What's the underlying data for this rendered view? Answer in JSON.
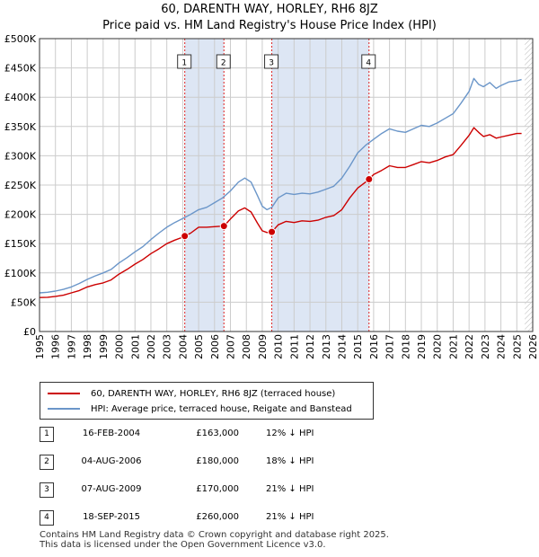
{
  "chart_data": {
    "type": "line",
    "title": "60, DARENTH WAY, HORLEY, RH6 8JZ",
    "subtitle": "Price paid vs. HM Land Registry's House Price Index (HPI)",
    "xlim": [
      1995,
      2026
    ],
    "ylim": [
      0,
      500000
    ],
    "x_ticks": [
      1995,
      1996,
      1997,
      1998,
      1999,
      2000,
      2001,
      2002,
      2003,
      2004,
      2005,
      2006,
      2007,
      2008,
      2009,
      2010,
      2011,
      2012,
      2013,
      2014,
      2015,
      2016,
      2017,
      2018,
      2019,
      2020,
      2021,
      2022,
      2023,
      2024,
      2025,
      2026
    ],
    "y_ticks": [
      {
        "value": 0,
        "label": "£0"
      },
      {
        "value": 50000,
        "label": "£50K"
      },
      {
        "value": 100000,
        "label": "£100K"
      },
      {
        "value": 150000,
        "label": "£150K"
      },
      {
        "value": 200000,
        "label": "£200K"
      },
      {
        "value": 250000,
        "label": "£250K"
      },
      {
        "value": 300000,
        "label": "£300K"
      },
      {
        "value": 350000,
        "label": "£350K"
      },
      {
        "value": 400000,
        "label": "£400K"
      },
      {
        "value": 450000,
        "label": "£450K"
      },
      {
        "value": 500000,
        "label": "£500K"
      }
    ],
    "series": [
      {
        "name": "60, DARENTH WAY, HORLEY, RH6 8JZ (terraced house)",
        "color": "#cc0000",
        "x": [
          1995.0,
          1995.5,
          1996.0,
          1996.5,
          1997.0,
          1997.5,
          1998.0,
          1998.5,
          1999.0,
          1999.5,
          2000.0,
          2000.5,
          2001.0,
          2001.5,
          2002.0,
          2002.5,
          2003.0,
          2003.5,
          2004.0,
          2004.13,
          2004.5,
          2005.0,
          2005.5,
          2006.0,
          2006.59,
          2007.0,
          2007.5,
          2007.9,
          2008.3,
          2008.7,
          2009.0,
          2009.3,
          2009.6,
          2010.0,
          2010.5,
          2011.0,
          2011.5,
          2012.0,
          2012.5,
          2013.0,
          2013.5,
          2014.0,
          2014.5,
          2015.0,
          2015.5,
          2015.71,
          2016.0,
          2016.5,
          2017.0,
          2017.5,
          2018.0,
          2018.5,
          2019.0,
          2019.5,
          2020.0,
          2020.5,
          2021.0,
          2021.5,
          2022.0,
          2022.3,
          2022.6,
          2022.9,
          2023.3,
          2023.7,
          2024.0,
          2024.5,
          2025.0,
          2025.3
        ],
        "values": [
          58000,
          58500,
          60000,
          62000,
          66000,
          70000,
          76000,
          80000,
          83000,
          88000,
          98000,
          106000,
          115000,
          123000,
          133000,
          141000,
          150000,
          156000,
          161000,
          163000,
          168000,
          178000,
          178000,
          179000,
          180000,
          192000,
          206000,
          211000,
          204000,
          185000,
          172000,
          169000,
          170000,
          182000,
          188000,
          186000,
          189000,
          188000,
          190000,
          195000,
          198000,
          208000,
          228000,
          245000,
          255000,
          260000,
          268000,
          275000,
          283000,
          280000,
          280000,
          285000,
          290000,
          288000,
          292000,
          298000,
          302000,
          318000,
          335000,
          348000,
          340000,
          333000,
          336000,
          330000,
          332000,
          335000,
          338000,
          338000
        ]
      },
      {
        "name": "HPI: Average price, terraced house, Reigate and Banstead",
        "color": "#6b96c9",
        "x": [
          1995.0,
          1995.5,
          1996.0,
          1996.5,
          1997.0,
          1997.5,
          1998.0,
          1998.5,
          1999.0,
          1999.5,
          2000.0,
          2000.5,
          2001.0,
          2001.5,
          2002.0,
          2002.5,
          2003.0,
          2003.5,
          2004.0,
          2004.5,
          2005.0,
          2005.5,
          2006.0,
          2006.5,
          2007.0,
          2007.5,
          2007.9,
          2008.3,
          2008.7,
          2009.0,
          2009.3,
          2009.6,
          2010.0,
          2010.5,
          2011.0,
          2011.5,
          2012.0,
          2012.5,
          2013.0,
          2013.5,
          2014.0,
          2014.5,
          2015.0,
          2015.5,
          2016.0,
          2016.5,
          2017.0,
          2017.5,
          2018.0,
          2018.5,
          2019.0,
          2019.5,
          2020.0,
          2020.5,
          2021.0,
          2021.5,
          2022.0,
          2022.3,
          2022.6,
          2022.9,
          2023.3,
          2023.7,
          2024.0,
          2024.5,
          2025.0,
          2025.3
        ],
        "values": [
          66000,
          67000,
          69000,
          72000,
          76000,
          82000,
          89000,
          95000,
          100000,
          106000,
          117000,
          126000,
          136000,
          145000,
          157000,
          168000,
          178000,
          186000,
          193000,
          200000,
          208000,
          212000,
          220000,
          228000,
          240000,
          255000,
          262000,
          255000,
          232000,
          214000,
          208000,
          212000,
          228000,
          236000,
          234000,
          236000,
          235000,
          238000,
          243000,
          248000,
          262000,
          282000,
          305000,
          318000,
          328000,
          338000,
          346000,
          342000,
          340000,
          346000,
          352000,
          350000,
          356000,
          364000,
          372000,
          390000,
          410000,
          432000,
          422000,
          418000,
          425000,
          415000,
          420000,
          426000,
          428000,
          430000
        ]
      }
    ],
    "sales": [
      {
        "num": "1",
        "date": "16-FEB-2004",
        "price": "£163,000",
        "hpi": "12% ↓ HPI",
        "x": 2004.13,
        "value": 163000
      },
      {
        "num": "2",
        "date": "04-AUG-2006",
        "price": "£180,000",
        "hpi": "18% ↓ HPI",
        "x": 2006.59,
        "value": 180000
      },
      {
        "num": "3",
        "date": "07-AUG-2009",
        "price": "£170,000",
        "hpi": "21% ↓ HPI",
        "x": 2009.6,
        "value": 170000
      },
      {
        "num": "4",
        "date": "18-SEP-2015",
        "price": "£260,000",
        "hpi": "21% ↓ HPI",
        "x": 2015.71,
        "value": 260000
      }
    ]
  },
  "footer": {
    "line1": "Contains HM Land Registry data © Crown copyright and database right 2025.",
    "line2": "This data is licensed under the Open Government Licence v3.0."
  },
  "colors": {
    "grid": "#cccccc",
    "axes_bg": "#ffffff",
    "band": "#dde6f4",
    "vline": "#dd2222",
    "hatch": "#888888"
  }
}
